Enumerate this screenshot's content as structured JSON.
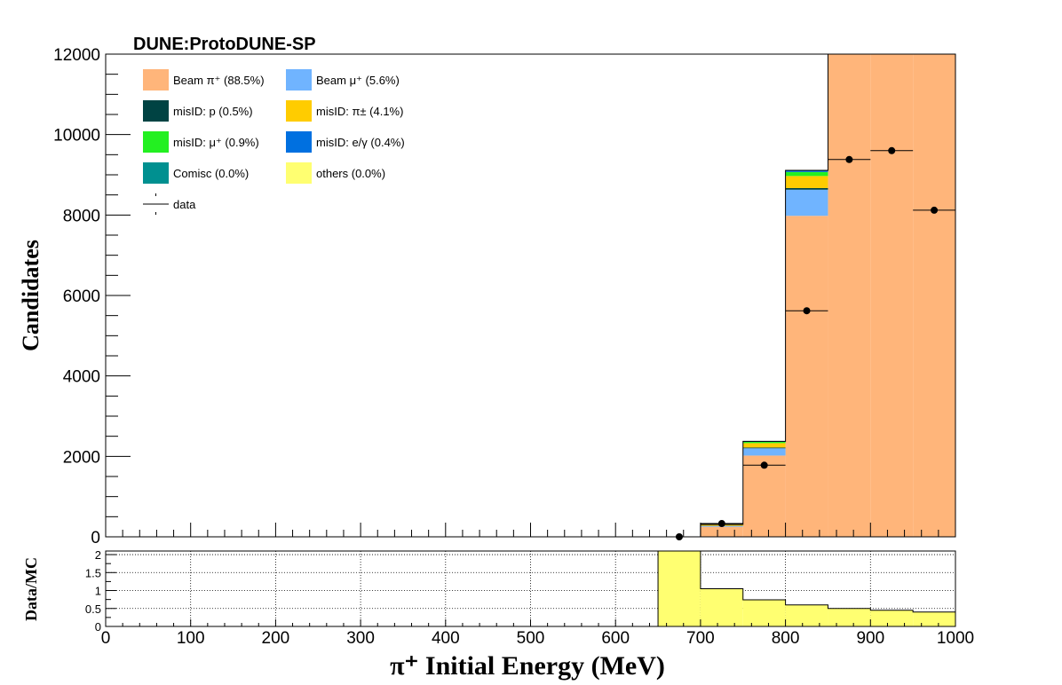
{
  "chart_data": [
    {
      "type": "bar",
      "subtype": "stacked-histogram-with-data-points",
      "experiment_label": "DUNE:ProtoDUNE-SP",
      "ylabel": "Candidates",
      "xlim": [
        0,
        1000
      ],
      "ylim": [
        0,
        12000
      ],
      "y_ticks": [
        "0",
        "2000",
        "4000",
        "6000",
        "8000",
        "10000",
        "12000"
      ],
      "bin_edges": [
        650,
        700,
        750,
        800,
        850,
        900,
        950,
        1000
      ],
      "legend_position": "top-left",
      "series": [
        {
          "name": "Beam π⁺ (88.5%)",
          "color": "#ffb57a",
          "values": [
            0,
            250,
            2020,
            7980,
            12200,
            12200,
            12200
          ]
        },
        {
          "name": "Beam μ⁺ (5.6%)",
          "color": "#70b4ff",
          "values": [
            0,
            20,
            180,
            650,
            0,
            0,
            0
          ]
        },
        {
          "name": "misID: p (0.5%)",
          "color": "#004343",
          "values": [
            0,
            5,
            20,
            40,
            0,
            0,
            0
          ]
        },
        {
          "name": "misID: π± (4.1%)",
          "color": "#ffcc00",
          "values": [
            0,
            25,
            110,
            300,
            0,
            0,
            0
          ]
        },
        {
          "name": "misID: μ⁺ (0.9%)",
          "color": "#23f021",
          "values": [
            0,
            5,
            30,
            100,
            0,
            0,
            0
          ]
        },
        {
          "name": "misID: e/γ (0.4%)",
          "color": "#0070e0",
          "values": [
            0,
            5,
            15,
            40,
            0,
            0,
            0
          ]
        },
        {
          "name": "Comisc (0.0%)",
          "color": "#009090",
          "values": [
            0,
            0,
            0,
            0,
            0,
            0,
            0
          ]
        },
        {
          "name": "others (0.0%)",
          "color": "#ffff71",
          "values": [
            0,
            0,
            0,
            0,
            0,
            0,
            0
          ]
        }
      ],
      "data_points": {
        "name": "data",
        "x": [
          675,
          725,
          775,
          825,
          875,
          925,
          975
        ],
        "y": [
          0,
          330,
          1780,
          5620,
          9380,
          9600,
          8120
        ],
        "xerr": 25
      }
    },
    {
      "type": "bar",
      "subtype": "ratio-histogram",
      "ylabel": "Data/MC",
      "xlabel": "π⁺ Initial Energy (MeV)",
      "xlim": [
        0,
        1000
      ],
      "ylim": [
        0,
        2.1
      ],
      "y_ticks": [
        "0",
        "0.5",
        "1",
        "1.5",
        "2"
      ],
      "x_ticks": [
        "0",
        "100",
        "200",
        "300",
        "400",
        "500",
        "600",
        "700",
        "800",
        "900",
        "1000"
      ],
      "grid": true,
      "fill_color": "#ffff71",
      "bin_edges": [
        650,
        700,
        750,
        800,
        850,
        900,
        950,
        1000
      ],
      "values": [
        2.1,
        1.05,
        0.74,
        0.6,
        0.5,
        0.45,
        0.4
      ]
    }
  ]
}
